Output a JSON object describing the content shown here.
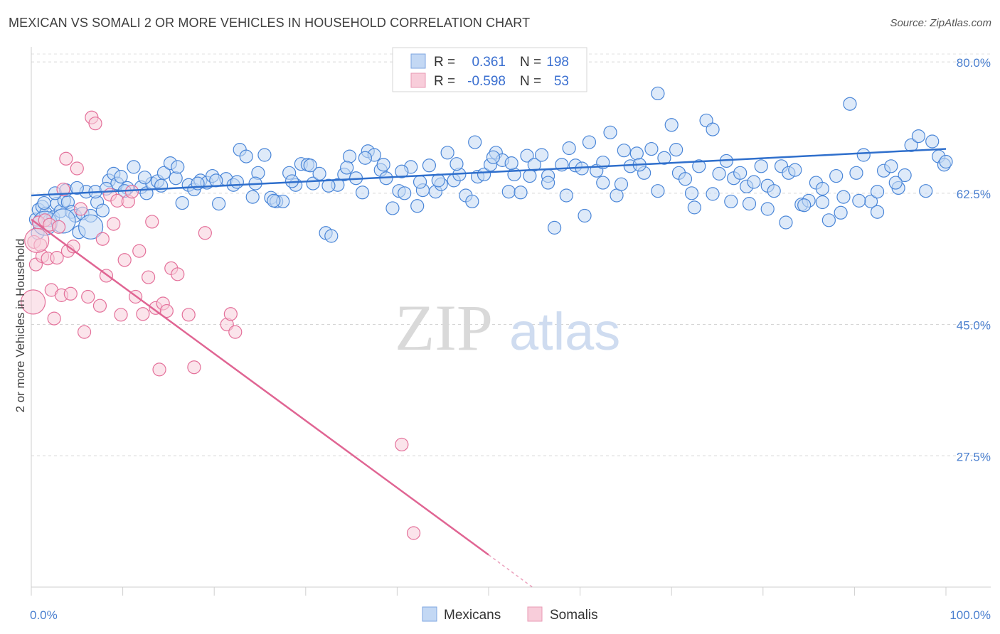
{
  "title": "MEXICAN VS SOMALI 2 OR MORE VEHICLES IN HOUSEHOLD CORRELATION CHART",
  "source": "Source: ZipAtlas.com",
  "watermark": {
    "zip": "ZIP",
    "atlas": "atlas"
  },
  "legend": {
    "rows": [
      {
        "r_label": "R =",
        "r_value": "0.361",
        "n_label": "N =",
        "n_value": "198",
        "color": "#a9c6ef"
      },
      {
        "r_label": "R =",
        "r_value": "-0.598",
        "n_label": "N =",
        "n_value": "53",
        "color": "#f5b8cc"
      }
    ]
  },
  "bottom_legend": [
    {
      "label": "Mexicans",
      "color": "#a9c6ef"
    },
    {
      "label": "Somalis",
      "color": "#f5b8cc"
    }
  ],
  "chart_data": {
    "type": "scatter",
    "title": "MEXICAN VS SOMALI 2 OR MORE VEHICLES IN HOUSEHOLD CORRELATION CHART",
    "xlabel": "",
    "ylabel": "2 or more Vehicles in Household",
    "xlim": [
      0,
      100
    ],
    "ylim": [
      10,
      82
    ],
    "x_tick_labels": [
      "0.0%",
      "100.0%"
    ],
    "y_ticks": [
      27.5,
      45.0,
      62.5,
      80.0
    ],
    "y_tick_labels": [
      "27.5%",
      "45.0%",
      "62.5%",
      "80.0%"
    ],
    "grid": "horizontal dashed",
    "legend_position": "top-center",
    "colors": {
      "mexicans": "#4a86d8",
      "mexicans_fill": "#c3d8f4",
      "somalis": "#e4709a",
      "somalis_fill": "#f8cdda",
      "mexicans_line": "#2f6fcc",
      "somalis_line": "#e06593"
    },
    "series": [
      {
        "name": "Mexicans",
        "trend": {
          "x": [
            0,
            100
          ],
          "y": [
            62.2,
            68.4
          ]
        },
        "points": [
          [
            0.5,
            59.0
          ],
          [
            0.8,
            60.3
          ],
          [
            1.2,
            60.7
          ],
          [
            1.6,
            59.8
          ],
          [
            2.0,
            58.9
          ],
          [
            2.4,
            59.3
          ],
          [
            2.8,
            61.1
          ],
          [
            3.2,
            60.1
          ],
          [
            3.6,
            61.5
          ],
          [
            4.0,
            61.3
          ],
          [
            4.4,
            60.0
          ],
          [
            4.8,
            59.5
          ],
          [
            5.2,
            57.3
          ],
          [
            5.6,
            59.8
          ],
          [
            6.0,
            62.7
          ],
          [
            6.5,
            59.5
          ],
          [
            7.2,
            61.3
          ],
          [
            7.8,
            60.2
          ],
          [
            8.5,
            64.2
          ],
          [
            9.0,
            65.1
          ],
          [
            9.4,
            63.8
          ],
          [
            9.8,
            64.7
          ],
          [
            10.5,
            63.2
          ],
          [
            11.2,
            66.0
          ],
          [
            12.0,
            63.3
          ],
          [
            12.6,
            62.5
          ],
          [
            13.2,
            63.8
          ],
          [
            13.8,
            64.1
          ],
          [
            14.5,
            65.2
          ],
          [
            15.2,
            66.5
          ],
          [
            15.8,
            64.5
          ],
          [
            16.5,
            61.2
          ],
          [
            17.2,
            63.6
          ],
          [
            17.8,
            63.0
          ],
          [
            18.5,
            64.2
          ],
          [
            19.2,
            63.9
          ],
          [
            19.8,
            64.8
          ],
          [
            20.5,
            61.1
          ],
          [
            21.3,
            64.4
          ],
          [
            22.1,
            63.6
          ],
          [
            22.8,
            68.3
          ],
          [
            23.5,
            67.4
          ],
          [
            24.2,
            62.0
          ],
          [
            24.8,
            65.2
          ],
          [
            25.5,
            67.6
          ],
          [
            26.2,
            61.9
          ],
          [
            26.8,
            61.4
          ],
          [
            27.5,
            61.4
          ],
          [
            28.2,
            65.2
          ],
          [
            28.9,
            63.6
          ],
          [
            29.5,
            66.4
          ],
          [
            30.2,
            66.3
          ],
          [
            30.8,
            63.8
          ],
          [
            31.5,
            65.1
          ],
          [
            32.2,
            57.2
          ],
          [
            32.8,
            56.8
          ],
          [
            33.5,
            63.6
          ],
          [
            34.2,
            65.0
          ],
          [
            34.8,
            67.4
          ],
          [
            35.5,
            64.5
          ],
          [
            36.2,
            62.6
          ],
          [
            36.8,
            68.1
          ],
          [
            37.5,
            67.6
          ],
          [
            38.2,
            65.6
          ],
          [
            38.8,
            64.5
          ],
          [
            39.5,
            60.5
          ],
          [
            40.2,
            62.8
          ],
          [
            40.8,
            62.5
          ],
          [
            41.5,
            66.0
          ],
          [
            42.2,
            60.8
          ],
          [
            42.8,
            62.9
          ],
          [
            43.5,
            66.2
          ],
          [
            44.2,
            62.7
          ],
          [
            44.8,
            63.7
          ],
          [
            45.5,
            67.9
          ],
          [
            46.2,
            64.2
          ],
          [
            46.8,
            65.0
          ],
          [
            47.5,
            62.2
          ],
          [
            48.2,
            61.4
          ],
          [
            48.8,
            64.7
          ],
          [
            49.5,
            65.0
          ],
          [
            50.2,
            66.3
          ],
          [
            50.8,
            67.9
          ],
          [
            51.5,
            66.9
          ],
          [
            52.2,
            62.7
          ],
          [
            52.8,
            65.0
          ],
          [
            53.5,
            62.6
          ],
          [
            54.2,
            67.5
          ],
          [
            55.0,
            66.3
          ],
          [
            55.8,
            67.6
          ],
          [
            56.5,
            64.8
          ],
          [
            57.2,
            57.9
          ],
          [
            58.0,
            66.3
          ],
          [
            58.8,
            68.5
          ],
          [
            59.5,
            66.2
          ],
          [
            60.2,
            65.8
          ],
          [
            61.0,
            69.3
          ],
          [
            61.8,
            65.5
          ],
          [
            62.5,
            66.6
          ],
          [
            63.3,
            70.6
          ],
          [
            64.0,
            62.2
          ],
          [
            64.8,
            68.2
          ],
          [
            65.5,
            66.1
          ],
          [
            66.2,
            67.8
          ],
          [
            67.0,
            65.2
          ],
          [
            67.8,
            68.4
          ],
          [
            68.5,
            75.8
          ],
          [
            69.2,
            67.2
          ],
          [
            70.0,
            71.6
          ],
          [
            70.8,
            65.2
          ],
          [
            71.5,
            64.4
          ],
          [
            72.2,
            62.5
          ],
          [
            73.0,
            66.1
          ],
          [
            73.8,
            72.2
          ],
          [
            74.5,
            71.0
          ],
          [
            75.2,
            65.1
          ],
          [
            76.0,
            66.8
          ],
          [
            76.8,
            64.5
          ],
          [
            77.5,
            65.2
          ],
          [
            78.2,
            63.4
          ],
          [
            79.0,
            64.0
          ],
          [
            79.8,
            66.1
          ],
          [
            80.5,
            63.5
          ],
          [
            81.2,
            62.8
          ],
          [
            82.0,
            66.1
          ],
          [
            82.8,
            65.2
          ],
          [
            83.5,
            65.6
          ],
          [
            84.2,
            61.0
          ],
          [
            85.0,
            61.5
          ],
          [
            85.8,
            63.9
          ],
          [
            86.5,
            63.1
          ],
          [
            87.2,
            58.9
          ],
          [
            88.0,
            64.8
          ],
          [
            88.8,
            62.0
          ],
          [
            89.5,
            74.4
          ],
          [
            90.2,
            65.2
          ],
          [
            91.0,
            67.6
          ],
          [
            91.8,
            61.4
          ],
          [
            92.5,
            62.7
          ],
          [
            93.2,
            65.5
          ],
          [
            94.0,
            66.1
          ],
          [
            94.8,
            63.2
          ],
          [
            95.5,
            64.9
          ],
          [
            96.2,
            68.9
          ],
          [
            97.0,
            70.1
          ],
          [
            97.8,
            62.8
          ],
          [
            98.5,
            69.4
          ],
          [
            99.2,
            67.4
          ],
          [
            99.8,
            66.3
          ],
          [
            100.0,
            66.7
          ],
          [
            0.7,
            57.2
          ],
          [
            1.4,
            61.2
          ],
          [
            2.6,
            62.5
          ],
          [
            3.8,
            62.9
          ],
          [
            5.0,
            63.2
          ],
          [
            7.0,
            62.7
          ],
          [
            8.2,
            63.1
          ],
          [
            10.2,
            62.8
          ],
          [
            12.4,
            64.6
          ],
          [
            14.2,
            63.5
          ],
          [
            16.0,
            66.0
          ],
          [
            18.2,
            63.8
          ],
          [
            20.2,
            64.2
          ],
          [
            22.5,
            64.0
          ],
          [
            24.5,
            63.8
          ],
          [
            26.5,
            61.5
          ],
          [
            28.5,
            64.1
          ],
          [
            30.5,
            66.2
          ],
          [
            32.5,
            63.5
          ],
          [
            34.5,
            65.9
          ],
          [
            36.5,
            67.2
          ],
          [
            38.5,
            66.3
          ],
          [
            40.5,
            65.4
          ],
          [
            42.5,
            64.0
          ],
          [
            44.5,
            64.2
          ],
          [
            46.5,
            66.4
          ],
          [
            48.5,
            69.3
          ],
          [
            50.5,
            67.3
          ],
          [
            52.5,
            66.5
          ],
          [
            54.5,
            64.8
          ],
          [
            56.5,
            63.9
          ],
          [
            58.5,
            62.2
          ],
          [
            60.5,
            59.5
          ],
          [
            62.5,
            63.9
          ],
          [
            64.5,
            63.7
          ],
          [
            66.5,
            66.3
          ],
          [
            68.5,
            62.8
          ],
          [
            70.5,
            68.3
          ],
          [
            72.5,
            60.6
          ],
          [
            74.5,
            62.4
          ],
          [
            76.5,
            61.4
          ],
          [
            78.5,
            61.1
          ],
          [
            80.5,
            60.4
          ],
          [
            82.5,
            58.6
          ],
          [
            84.5,
            60.9
          ],
          [
            86.5,
            61.3
          ],
          [
            88.5,
            59.9
          ],
          [
            90.5,
            61.5
          ],
          [
            92.5,
            60.0
          ],
          [
            94.5,
            63.9
          ]
        ],
        "large_points": [
          [
            1.5,
            58.5
          ],
          [
            3.5,
            58.8
          ],
          [
            6.5,
            58.0
          ]
        ]
      },
      {
        "name": "Somalis",
        "trend": {
          "x": [
            0,
            50
          ],
          "y": [
            59.0,
            14.3
          ]
        },
        "trend_dashed": {
          "x": [
            50,
            55
          ],
          "y": [
            14.3,
            9.8
          ]
        },
        "points": [
          [
            0.3,
            56.0
          ],
          [
            0.5,
            53.0
          ],
          [
            0.8,
            58.6
          ],
          [
            1.0,
            55.6
          ],
          [
            1.2,
            54.1
          ],
          [
            1.5,
            58.9
          ],
          [
            1.8,
            53.8
          ],
          [
            2.0,
            58.3
          ],
          [
            2.2,
            49.6
          ],
          [
            2.5,
            45.8
          ],
          [
            2.8,
            53.9
          ],
          [
            3.0,
            58.0
          ],
          [
            3.3,
            48.9
          ],
          [
            3.5,
            63.0
          ],
          [
            3.8,
            67.1
          ],
          [
            4.0,
            54.8
          ],
          [
            4.3,
            49.1
          ],
          [
            4.6,
            55.4
          ],
          [
            5.0,
            65.8
          ],
          [
            5.4,
            60.4
          ],
          [
            5.8,
            44.0
          ],
          [
            6.2,
            48.7
          ],
          [
            6.6,
            72.6
          ],
          [
            7.0,
            71.8
          ],
          [
            7.5,
            47.5
          ],
          [
            7.8,
            56.4
          ],
          [
            8.2,
            51.5
          ],
          [
            8.6,
            62.3
          ],
          [
            9.0,
            58.4
          ],
          [
            9.4,
            61.5
          ],
          [
            9.8,
            46.3
          ],
          [
            10.2,
            53.6
          ],
          [
            10.6,
            61.4
          ],
          [
            11.0,
            62.7
          ],
          [
            11.4,
            48.7
          ],
          [
            11.8,
            54.8
          ],
          [
            12.2,
            46.4
          ],
          [
            12.8,
            51.3
          ],
          [
            13.2,
            58.7
          ],
          [
            13.6,
            47.2
          ],
          [
            14.0,
            39.0
          ],
          [
            14.4,
            47.8
          ],
          [
            14.8,
            46.8
          ],
          [
            15.3,
            52.5
          ],
          [
            16.0,
            51.7
          ],
          [
            17.2,
            46.3
          ],
          [
            17.8,
            39.3
          ],
          [
            19.0,
            57.2
          ],
          [
            21.4,
            45.0
          ],
          [
            21.8,
            46.4
          ],
          [
            22.3,
            44.0
          ],
          [
            40.5,
            29.0
          ],
          [
            41.8,
            17.2
          ]
        ],
        "large_points": [
          [
            0.2,
            48.0
          ],
          [
            0.6,
            56.2
          ]
        ]
      }
    ]
  }
}
